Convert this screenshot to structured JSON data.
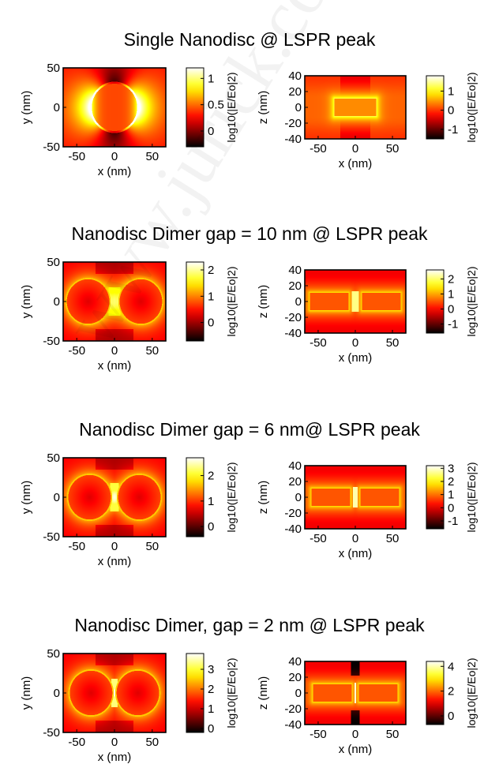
{
  "watermark": "www.jurick.com",
  "colorbar_unit": "log10(|E/Eo|2)",
  "chart_data": [
    {
      "type": "heatmap",
      "title": "Single Nanodisc @ LSPR peak",
      "panels": [
        {
          "view": "xy",
          "xlabel": "x (nm)",
          "ylabel": "y (nm)",
          "xlim": [
            -68,
            68
          ],
          "ylim": [
            -50,
            50
          ],
          "xticks": [
            -50,
            0,
            50
          ],
          "yticks": [
            -50,
            0,
            50
          ],
          "colorbar": {
            "range": [
              -0.3,
              1.2
            ],
            "ticks": [
              0,
              0.5,
              1
            ],
            "label": "log10(|E/Eo|2)"
          },
          "gap_nm": null
        },
        {
          "view": "xz",
          "xlabel": "x (nm)",
          "ylabel": "z (nm)",
          "xlim": [
            -68,
            68
          ],
          "ylim": [
            -40,
            40
          ],
          "xticks": [
            -50,
            0,
            50
          ],
          "yticks": [
            -40,
            -20,
            0,
            20,
            40
          ],
          "colorbar": {
            "range": [
              -1.5,
              1.8
            ],
            "ticks": [
              -1,
              0,
              1
            ],
            "label": "log10(|E/Eo|2)"
          },
          "gap_nm": null
        }
      ]
    },
    {
      "type": "heatmap",
      "title": "Nanodisc Dimer gap = 10 nm @ LSPR peak",
      "panels": [
        {
          "view": "xy",
          "xlabel": "x (nm)",
          "ylabel": "y (nm)",
          "xlim": [
            -68,
            68
          ],
          "ylim": [
            -50,
            50
          ],
          "xticks": [
            -50,
            0,
            50
          ],
          "yticks": [
            -50,
            0,
            50
          ],
          "colorbar": {
            "range": [
              -0.7,
              2.3
            ],
            "ticks": [
              0,
              1,
              2
            ],
            "label": "log10(|E/Eo|2)"
          },
          "gap_nm": 10
        },
        {
          "view": "xz",
          "xlabel": "x (nm)",
          "ylabel": "z (nm)",
          "xlim": [
            -68,
            68
          ],
          "ylim": [
            -40,
            40
          ],
          "xticks": [
            -50,
            0,
            50
          ],
          "yticks": [
            -40,
            -20,
            0,
            20,
            40
          ],
          "colorbar": {
            "range": [
              -1.6,
              2.6
            ],
            "ticks": [
              -1,
              0,
              1,
              2
            ],
            "label": "log10(|E/Eo|2)"
          },
          "gap_nm": 10
        }
      ]
    },
    {
      "type": "heatmap",
      "title": "Nanodisc Dimer gap = 6 nm@ LSPR peak",
      "panels": [
        {
          "view": "xy",
          "xlabel": "x (nm)",
          "ylabel": "y (nm)",
          "xlim": [
            -68,
            68
          ],
          "ylim": [
            -50,
            50
          ],
          "xticks": [
            -50,
            0,
            50
          ],
          "yticks": [
            -50,
            0,
            50
          ],
          "colorbar": {
            "range": [
              -0.4,
              2.7
            ],
            "ticks": [
              0,
              1,
              2
            ],
            "label": "log10(|E/Eo|2)"
          },
          "gap_nm": 6
        },
        {
          "view": "xz",
          "xlabel": "x (nm)",
          "ylabel": "z (nm)",
          "xlim": [
            -68,
            68
          ],
          "ylim": [
            -40,
            40
          ],
          "xticks": [
            -50,
            0,
            50
          ],
          "yticks": [
            -40,
            -20,
            0,
            20,
            40
          ],
          "colorbar": {
            "range": [
              -1.6,
              3.2
            ],
            "ticks": [
              -1,
              0,
              1,
              2,
              3
            ],
            "label": "log10(|E/Eo|2)"
          },
          "gap_nm": 6
        }
      ]
    },
    {
      "type": "heatmap",
      "title": "Nanodisc  Dimer,  gap = 2 nm @ LSPR peak",
      "panels": [
        {
          "view": "xy",
          "xlabel": "x (nm)",
          "ylabel": "y (nm)",
          "xlim": [
            -68,
            68
          ],
          "ylim": [
            -50,
            50
          ],
          "xticks": [
            -50,
            0,
            50
          ],
          "yticks": [
            -50,
            0,
            50
          ],
          "colorbar": {
            "range": [
              -0.2,
              3.8
            ],
            "ticks": [
              0,
              1,
              2,
              3
            ],
            "label": "log10(|E/Eo|2)"
          },
          "gap_nm": 2
        },
        {
          "view": "xz",
          "xlabel": "x (nm)",
          "ylabel": "z (nm)",
          "xlim": [
            -68,
            68
          ],
          "ylim": [
            -40,
            40
          ],
          "xticks": [
            -50,
            0,
            50
          ],
          "yticks": [
            -40,
            -20,
            0,
            20,
            40
          ],
          "colorbar": {
            "range": [
              -0.7,
              4.4
            ],
            "ticks": [
              0,
              2,
              4
            ],
            "label": "log10(|E/Eo|2)"
          },
          "gap_nm": 2
        }
      ]
    }
  ]
}
